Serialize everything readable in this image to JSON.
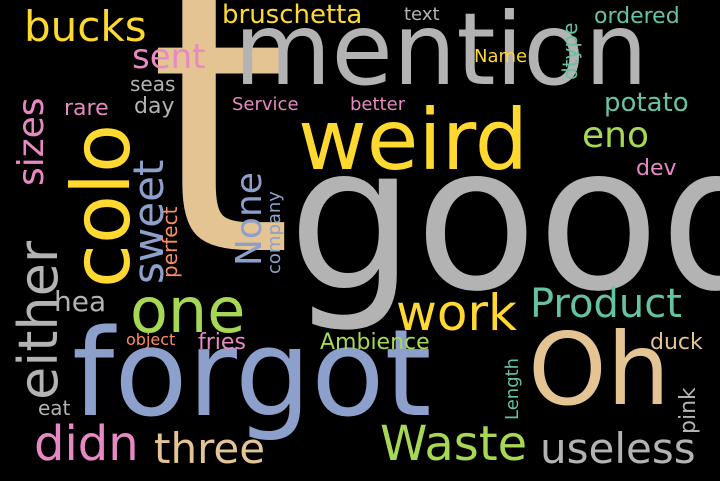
{
  "palette": {
    "tan": "#e5c494",
    "gray": "#b3b3b3",
    "yellow": "#ffd92f",
    "blue": "#8da0cb",
    "green": "#a6d854",
    "pink": "#e78ac3",
    "teal": "#66c2a5",
    "orange": "#fc8d62"
  },
  "words": [
    {
      "text": "t",
      "color": "tan",
      "orientation": "horizontal"
    },
    {
      "text": "good",
      "color": "gray",
      "orientation": "horizontal"
    },
    {
      "text": "mention",
      "color": "gray",
      "orientation": "horizontal"
    },
    {
      "text": "forgot",
      "color": "blue",
      "orientation": "horizontal"
    },
    {
      "text": "Oh",
      "color": "tan",
      "orientation": "horizontal"
    },
    {
      "text": "weird",
      "color": "yellow",
      "orientation": "horizontal"
    },
    {
      "text": "colo",
      "color": "yellow",
      "orientation": "vertical"
    },
    {
      "text": "one",
      "color": "green",
      "orientation": "horizontal"
    },
    {
      "text": "either",
      "color": "gray",
      "orientation": "vertical"
    },
    {
      "text": "sizes",
      "color": "pink",
      "orientation": "vertical"
    },
    {
      "text": "bucks",
      "color": "yellow",
      "orientation": "horizontal"
    },
    {
      "text": "work",
      "color": "yellow",
      "orientation": "horizontal"
    },
    {
      "text": "Product",
      "color": "teal",
      "orientation": "horizontal"
    },
    {
      "text": "Waste",
      "color": "green",
      "orientation": "horizontal"
    },
    {
      "text": "didn",
      "color": "pink",
      "orientation": "horizontal"
    },
    {
      "text": "three",
      "color": "tan",
      "orientation": "horizontal"
    },
    {
      "text": "useless",
      "color": "gray",
      "orientation": "horizontal"
    },
    {
      "text": "sweet",
      "color": "blue",
      "orientation": "vertical"
    },
    {
      "text": "None",
      "color": "blue",
      "orientation": "vertical"
    },
    {
      "text": "sent",
      "color": "pink",
      "orientation": "horizontal"
    },
    {
      "text": "hea",
      "color": "gray",
      "orientation": "horizontal"
    },
    {
      "text": "eno",
      "color": "green",
      "orientation": "horizontal"
    },
    {
      "text": "potato",
      "color": "teal",
      "orientation": "horizontal"
    },
    {
      "text": "bruschetta",
      "color": "yellow",
      "orientation": "horizontal"
    },
    {
      "text": "ordered",
      "color": "teal",
      "orientation": "horizontal"
    },
    {
      "text": "Ambience",
      "color": "green",
      "orientation": "horizontal"
    },
    {
      "text": "fries",
      "color": "pink",
      "orientation": "horizontal"
    },
    {
      "text": "duck",
      "color": "tan",
      "orientation": "horizontal"
    },
    {
      "text": "pink",
      "color": "gray",
      "orientation": "vertical"
    },
    {
      "text": "Length",
      "color": "teal",
      "orientation": "vertical"
    },
    {
      "text": "day",
      "color": "gray",
      "orientation": "horizontal"
    },
    {
      "text": "seas",
      "color": "gray",
      "orientation": "horizontal"
    },
    {
      "text": "rare",
      "color": "pink",
      "orientation": "horizontal"
    },
    {
      "text": "Service",
      "color": "pink",
      "orientation": "horizontal"
    },
    {
      "text": "better",
      "color": "pink",
      "orientation": "horizontal"
    },
    {
      "text": "perfect",
      "color": "orange",
      "orientation": "vertical"
    },
    {
      "text": "company",
      "color": "blue",
      "orientation": "vertical"
    },
    {
      "text": "dev",
      "color": "pink",
      "orientation": "horizontal"
    },
    {
      "text": "eat",
      "color": "gray",
      "orientation": "horizontal"
    },
    {
      "text": "text",
      "color": "gray",
      "orientation": "horizontal"
    },
    {
      "text": "dtype",
      "color": "teal",
      "orientation": "vertical"
    },
    {
      "text": "Name",
      "color": "yellow",
      "orientation": "horizontal"
    },
    {
      "text": "object",
      "color": "orange",
      "orientation": "horizontal"
    }
  ]
}
